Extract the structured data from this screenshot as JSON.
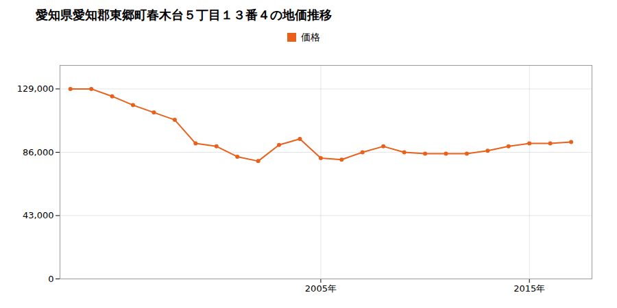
{
  "chart_data": {
    "type": "line",
    "title": "愛知県愛知郡東郷町春木台５丁目１３番４の地価推移",
    "x": [
      1993,
      1994,
      1995,
      1996,
      1997,
      1998,
      1999,
      2000,
      2001,
      2002,
      2003,
      2004,
      2005,
      2006,
      2007,
      2008,
      2009,
      2010,
      2011,
      2012,
      2013,
      2014,
      2015,
      2016,
      2017
    ],
    "series": [
      {
        "name": "価格",
        "color": "#e8601a",
        "marker": "circle",
        "values": [
          129000,
          129000,
          124000,
          118000,
          113000,
          108000,
          92000,
          90000,
          83000,
          80000,
          91000,
          95000,
          82000,
          81000,
          86000,
          90000,
          86000,
          85000,
          85000,
          85000,
          87000,
          90000,
          92000,
          92000,
          93000
        ]
      }
    ],
    "xlim": [
      1992.5,
      2018
    ],
    "xticks": [
      {
        "value": 2005,
        "label": "2005年"
      },
      {
        "value": 2015,
        "label": "2015年"
      }
    ],
    "ylim": [
      0,
      145000
    ],
    "yticks": [
      0,
      {
        "value": 43000,
        "label": "43,000"
      },
      {
        "value": 86000,
        "label": "86,000"
      },
      {
        "value": 129000,
        "label": "129,000"
      }
    ],
    "grid": true,
    "legend": "top"
  }
}
